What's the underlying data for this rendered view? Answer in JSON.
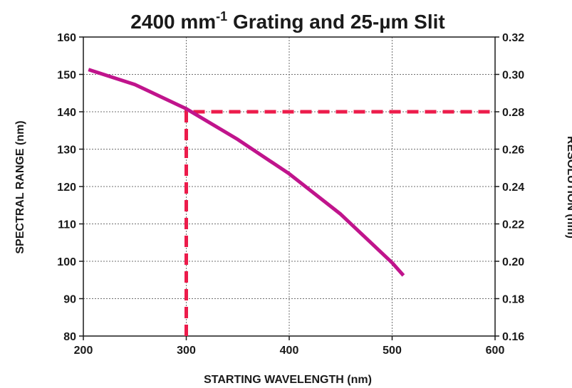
{
  "chart_data": {
    "type": "line",
    "title": {
      "main": "2400 mm",
      "superscript": "-1",
      "rest": " Grating and 25-µm Slit"
    },
    "xlabel": "STARTING WAVELENGTH (nm)",
    "ylabel": "SPECTRAL RANGE (nm)",
    "y2label": "RESOLUTION (nm)",
    "xlim": [
      200,
      600
    ],
    "ylim": [
      80,
      160
    ],
    "y2lim": [
      0.16,
      0.32
    ],
    "x_ticks": [
      "200",
      "300",
      "400",
      "500",
      "600"
    ],
    "y_ticks": [
      "80",
      "90",
      "100",
      "110",
      "120",
      "130",
      "140",
      "150",
      "160"
    ],
    "y2_ticks": [
      "0.16",
      "0.18",
      "0.20",
      "0.22",
      "0.24",
      "0.26",
      "0.28",
      "0.30",
      "0.32"
    ],
    "grid": true,
    "series": [
      {
        "color": "#c0148c",
        "x": [
          205,
          250,
          300,
          350,
          400,
          450,
          500,
          511
        ],
        "y": [
          151.3,
          147.3,
          140.8,
          132.6,
          123.4,
          112.6,
          99.6,
          96.2
        ]
      }
    ],
    "annotations": [
      {
        "style": "dashed",
        "color": "#ec1c4b",
        "x": [
          300,
          300,
          600
        ],
        "y": [
          80,
          140,
          140
        ]
      }
    ]
  }
}
